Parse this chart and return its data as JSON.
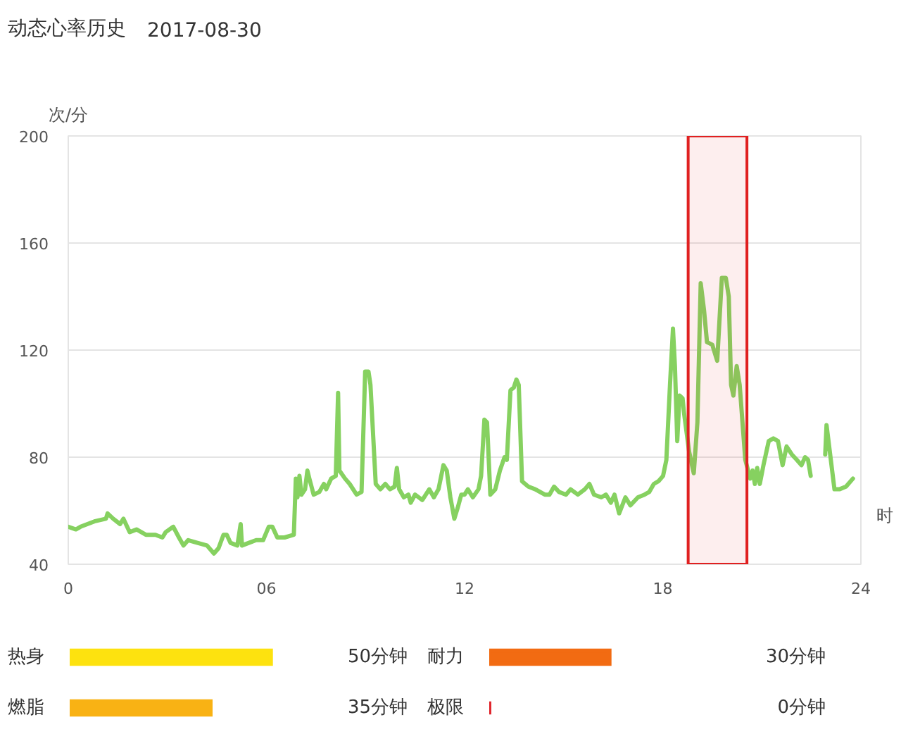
{
  "chart_data": [
    {
      "type": "line",
      "title": "动态心率历史",
      "subtitle": "2017-08-30",
      "ylabel": "次/分",
      "xlabel": "时",
      "x": [
        0,
        0.23,
        0.37,
        0.79,
        1.14,
        1.19,
        1.36,
        1.57,
        1.67,
        1.86,
        2.07,
        2.35,
        2.64,
        2.85,
        2.95,
        3.18,
        3.35,
        3.49,
        3.63,
        3.91,
        4.2,
        4.41,
        4.55,
        4.7,
        4.8,
        4.91,
        5.12,
        5.22,
        5.26,
        5.47,
        5.69,
        5.9,
        6.07,
        6.18,
        6.33,
        6.55,
        6.83,
        6.89,
        6.94,
        7.0,
        7.06,
        7.17,
        7.24,
        7.3,
        7.43,
        7.6,
        7.74,
        7.81,
        7.96,
        8.1,
        8.17,
        8.21,
        8.38,
        8.52,
        8.73,
        8.88,
        8.99,
        9.09,
        9.15,
        9.31,
        9.45,
        9.6,
        9.74,
        9.88,
        9.95,
        10.02,
        10.16,
        10.3,
        10.37,
        10.5,
        10.72,
        10.93,
        11.07,
        11.21,
        11.36,
        11.46,
        11.57,
        11.69,
        11.79,
        11.9,
        12.0,
        12.1,
        12.25,
        12.42,
        12.5,
        12.6,
        12.68,
        12.78,
        12.93,
        13.07,
        13.21,
        13.28,
        13.39,
        13.49,
        13.57,
        13.64,
        13.74,
        13.93,
        14.14,
        14.43,
        14.57,
        14.71,
        14.86,
        15.07,
        15.21,
        15.43,
        15.64,
        15.78,
        15.92,
        16.14,
        16.28,
        16.43,
        16.54,
        16.68,
        16.87,
        17.02,
        17.25,
        17.45,
        17.59,
        17.73,
        17.87,
        18.01,
        18.11,
        18.22,
        18.31,
        18.37,
        18.44,
        18.51,
        18.6,
        18.65,
        18.8,
        18.94,
        19.05,
        19.15,
        19.25,
        19.34,
        19.5,
        19.65,
        19.79,
        19.91,
        20.0,
        20.07,
        20.14,
        20.24,
        20.33,
        20.5,
        20.65,
        20.72,
        20.79,
        20.86,
        20.94,
        21.05,
        21.21,
        21.35,
        21.49,
        21.63,
        21.75,
        21.91,
        22.06,
        22.2,
        22.31,
        22.4,
        22.48,
        22.7,
        22.92,
        22.96,
        23.06,
        23.2,
        23.35,
        23.55,
        23.76
      ],
      "series": [
        {
          "color": "#86d160",
          "values": [
            54,
            53,
            54,
            56,
            57,
            59,
            57,
            55,
            57,
            52,
            53,
            51,
            51,
            50,
            52,
            54,
            50,
            47,
            49,
            48,
            47,
            44,
            46,
            51,
            51,
            48,
            47,
            55,
            47,
            48,
            49,
            49,
            54,
            54,
            50,
            50,
            51,
            72,
            65,
            73,
            66,
            68,
            75,
            72,
            66,
            67,
            70,
            68,
            72,
            73,
            104,
            75,
            72,
            70,
            66,
            67,
            112,
            112,
            107,
            70,
            68,
            70,
            68,
            69,
            76,
            68,
            65,
            66,
            63,
            66,
            64,
            68,
            65,
            68,
            77,
            75,
            65,
            57,
            61,
            66,
            66,
            68,
            65,
            68,
            73,
            94,
            93,
            66,
            68,
            75,
            80,
            79,
            105,
            106,
            109,
            107,
            71,
            69,
            68,
            66,
            66,
            69,
            67,
            66,
            68,
            66,
            68,
            70,
            66,
            65,
            66,
            63,
            66,
            59,
            65,
            62,
            65,
            66,
            67,
            70,
            71,
            73,
            79,
            107,
            128,
            114,
            86,
            103,
            102,
            96,
            82,
            74,
            93,
            145,
            135,
            123,
            122,
            116,
            147,
            147,
            140,
            107,
            103,
            114,
            107,
            79,
            72,
            75,
            70,
            76,
            70,
            77,
            86,
            87,
            86,
            77,
            84,
            81,
            79,
            77,
            80,
            79,
            73,
            null,
            81,
            92,
            82,
            68,
            68,
            69,
            72
          ]
        }
      ],
      "xlim": [
        0,
        24
      ],
      "xticks": [
        0,
        {
          "value": 6,
          "label": "06"
        },
        12,
        18,
        24
      ],
      "ylim": [
        40,
        200
      ],
      "yticks": [
        40,
        80,
        120,
        160,
        200
      ],
      "grid": "y",
      "bands": [
        {
          "axis": "x",
          "from": 18.77,
          "to": 20.55,
          "color": "#e02020"
        }
      ]
    },
    {
      "type": "bar",
      "orientation": "horizontal",
      "categories": [
        "热身",
        "燃脂"
      ],
      "values": [
        50,
        35
      ],
      "colors": [
        "#fde20f",
        "#f9b214"
      ],
      "value_labels": [
        "50分钟",
        "35分钟"
      ],
      "tick_labels": "y"
    },
    {
      "type": "bar",
      "orientation": "horizontal",
      "categories": [
        "耐力",
        "极限"
      ],
      "values": [
        30,
        0
      ],
      "colors": [
        "#f26b12",
        "#e0262d"
      ],
      "value_labels": [
        "30分钟",
        "0分钟"
      ],
      "tick_labels": "y"
    }
  ]
}
